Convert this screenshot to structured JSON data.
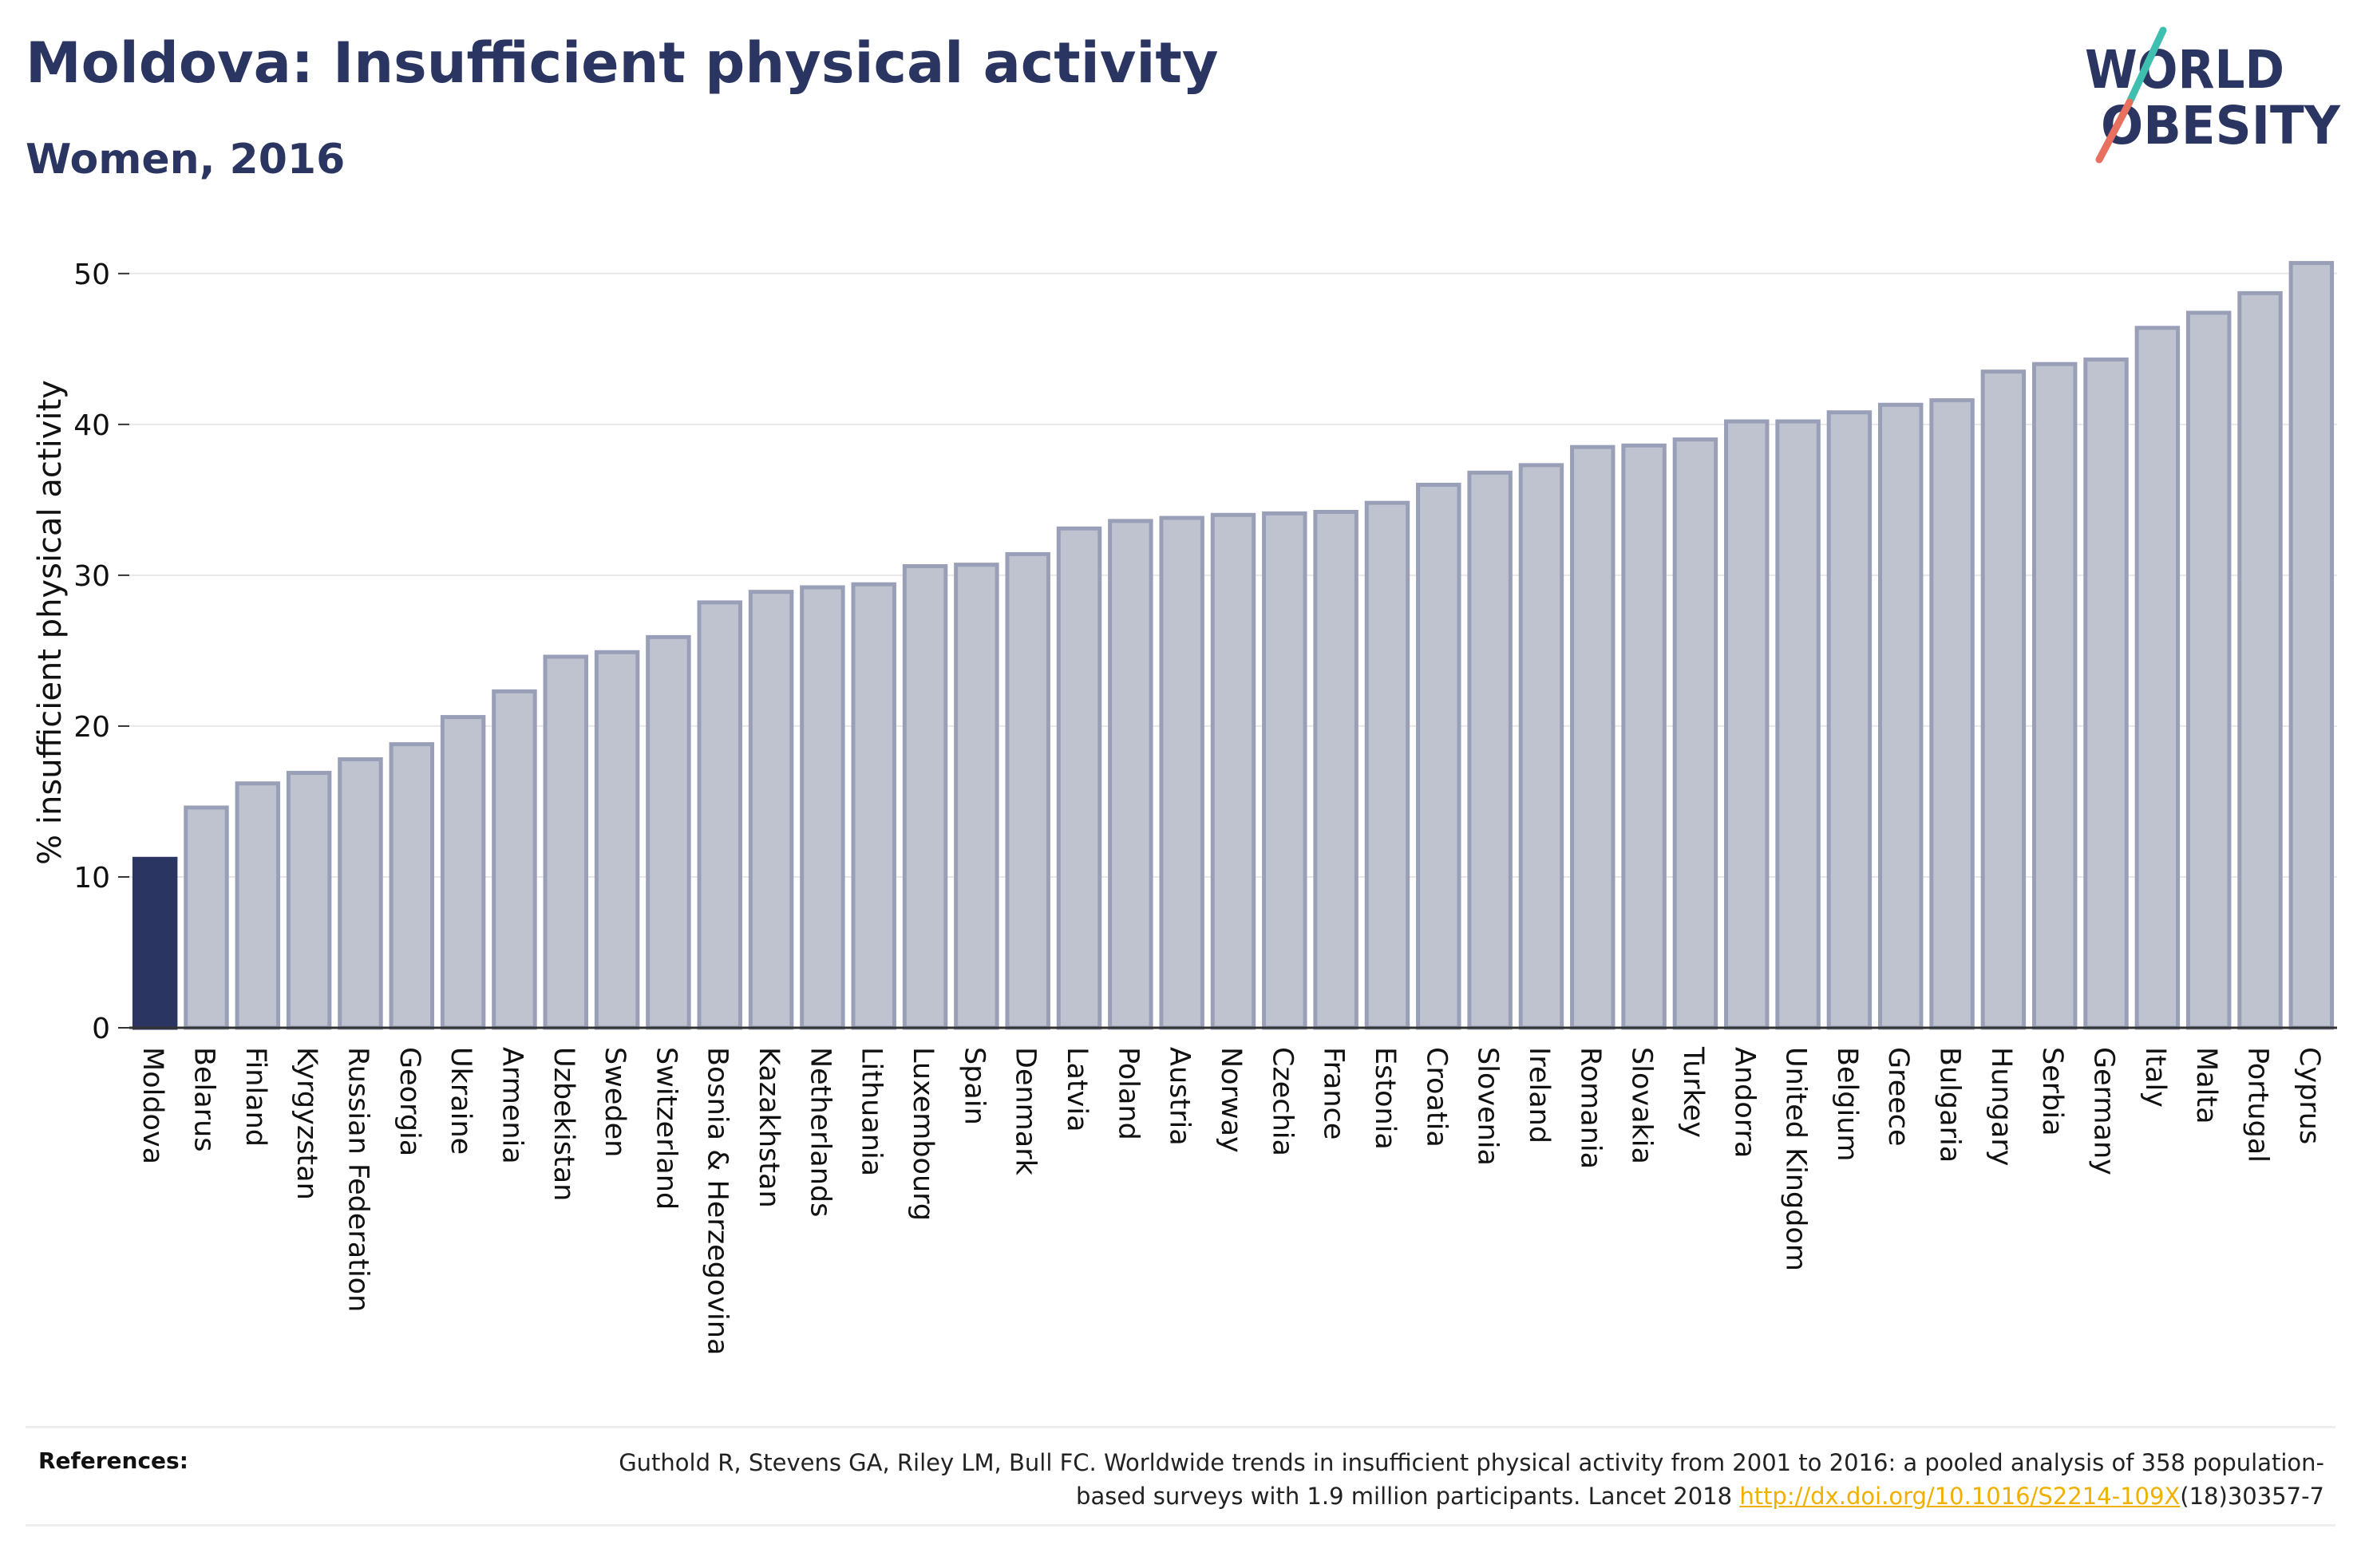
{
  "title": "Moldova: Insufficient physical activity",
  "subtitle": "Women, 2016",
  "logo": {
    "line1": "W RLD",
    "line2": "BESITY",
    "text": "WORLD OBESITY"
  },
  "references": {
    "label": "References:",
    "text_before": "Guthold R, Stevens GA, Riley LM, Bull FC. Worldwide trends in insufficient physical activity from 2001 to 2016: a pooled analysis of 358 population-based surveys with 1.9 million participants. Lancet 2018 ",
    "link": "http://dx.doi.org/10.1016/S2214-109X",
    "text_after": "(18)30357-7"
  },
  "colors": {
    "highlight": "#2b3561",
    "bar_fill": "#bfc3d0",
    "bar_stroke": "#9a9fb8",
    "grid": "#e8e8e8",
    "logo_teal": "#3fbfb0",
    "logo_coral": "#e8705f"
  },
  "chart_data": {
    "type": "bar",
    "title": "Moldova: Insufficient physical activity",
    "subtitle": "Women, 2016",
    "xlabel": "",
    "ylabel": "% insufficient physical activity",
    "ylim": [
      0,
      52
    ],
    "yticks": [
      0,
      10,
      20,
      30,
      40,
      50
    ],
    "grid": true,
    "highlight": "Moldova",
    "categories": [
      "Moldova",
      "Belarus",
      "Finland",
      "Kyrgyzstan",
      "Russian Federation",
      "Georgia",
      "Ukraine",
      "Armenia",
      "Uzbekistan",
      "Sweden",
      "Switzerland",
      "Bosnia & Herzegovina",
      "Kazakhstan",
      "Netherlands",
      "Lithuania",
      "Luxembourg",
      "Spain",
      "Denmark",
      "Latvia",
      "Poland",
      "Austria",
      "Norway",
      "Czechia",
      "France",
      "Estonia",
      "Croatia",
      "Slovenia",
      "Ireland",
      "Romania",
      "Slovakia",
      "Turkey",
      "Andorra",
      "United Kingdom",
      "Belgium",
      "Greece",
      "Bulgaria",
      "Hungary",
      "Serbia",
      "Germany",
      "Italy",
      "Malta",
      "Portugal",
      "Cyprus"
    ],
    "values": [
      11.2,
      14.6,
      16.2,
      16.9,
      17.8,
      18.8,
      20.6,
      22.3,
      24.6,
      24.9,
      25.9,
      28.2,
      28.9,
      29.2,
      29.4,
      30.6,
      30.7,
      31.4,
      33.1,
      33.6,
      33.8,
      34.0,
      34.1,
      34.2,
      34.8,
      36.0,
      36.8,
      37.3,
      38.5,
      38.6,
      39.0,
      40.2,
      40.2,
      40.8,
      41.3,
      41.6,
      43.5,
      44.0,
      44.3,
      46.4,
      47.4,
      48.7,
      50.7
    ]
  }
}
